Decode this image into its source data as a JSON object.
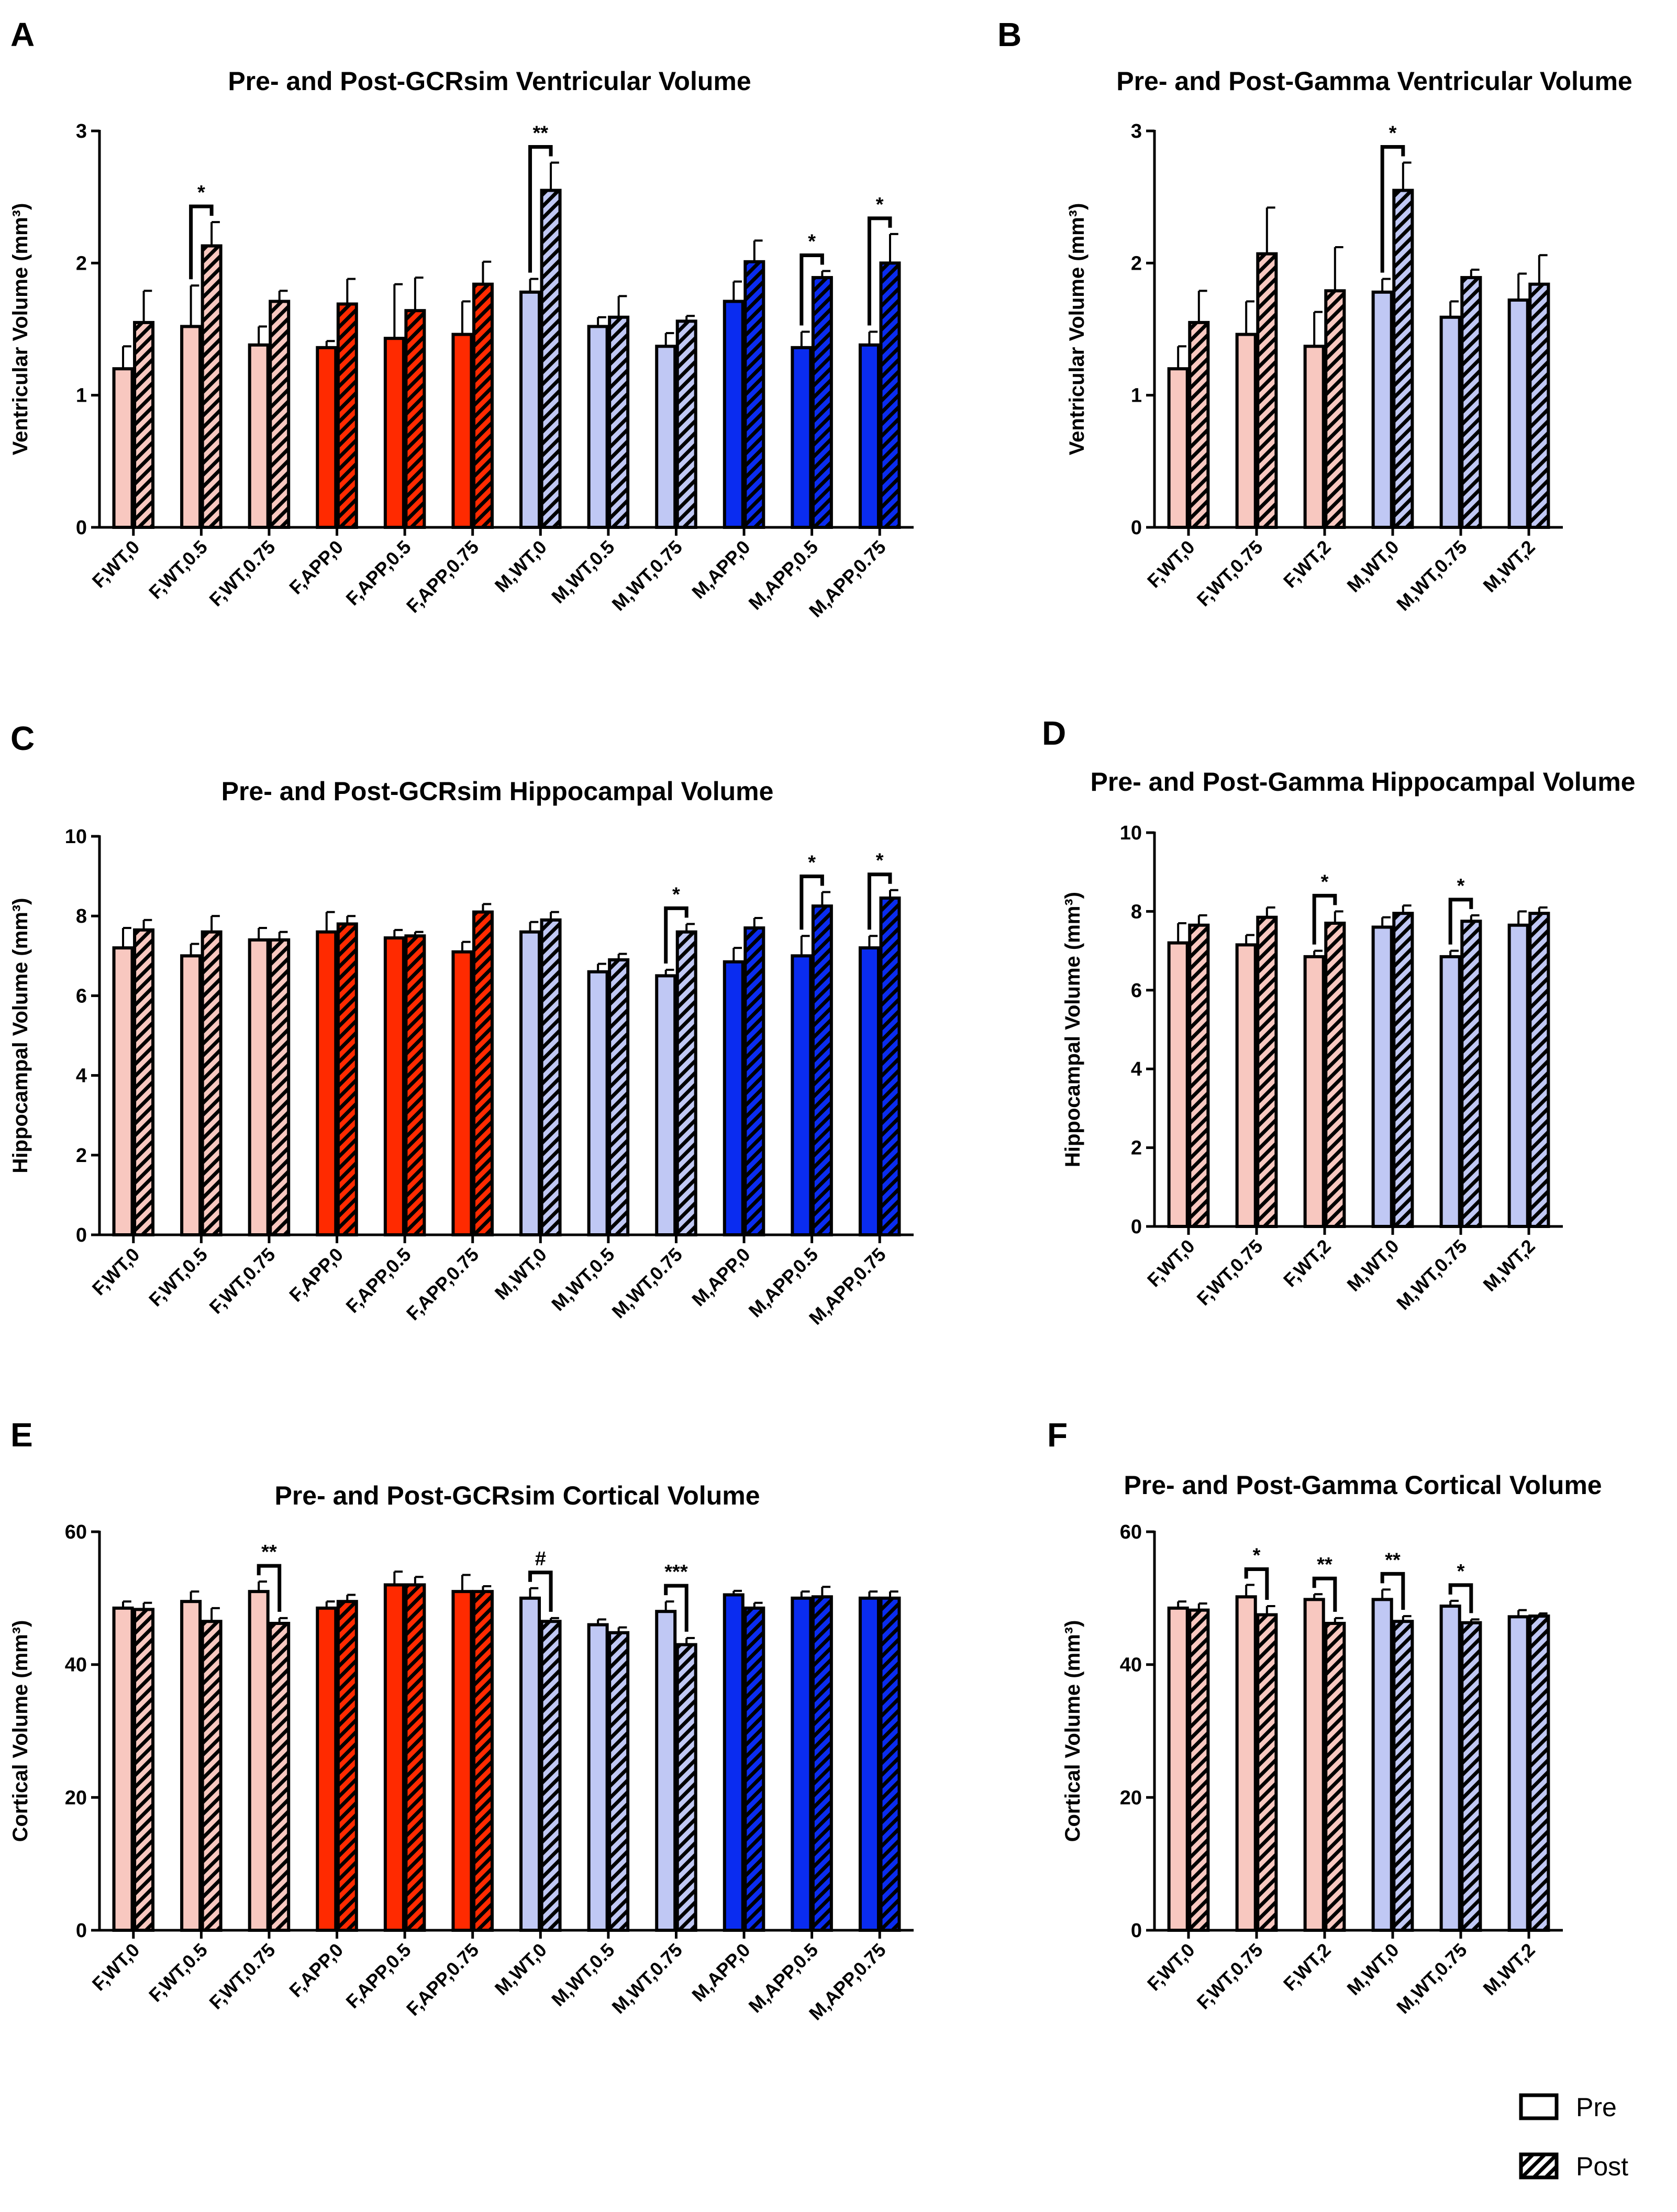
{
  "legend": {
    "pre_label": "Pre",
    "post_label": "Post"
  },
  "colors": {
    "F,WT": "#f8c8c0",
    "F,APP": "#ff2a00",
    "M,WT": "#c0c8f4",
    "M,APP": "#0a2cf0",
    "hatch": "#000000"
  },
  "chart_data": [
    {
      "panel": "A",
      "type": "bar",
      "title": "Pre- and Post-GCRsim Ventricular Volume",
      "ylabel": "Ventricular Volume (mm³)",
      "ylim": [
        0,
        3
      ],
      "yticks": [
        0,
        1,
        2,
        3
      ],
      "categories": [
        "F,WT,0",
        "F,WT,0.5",
        "F,WT,0.75",
        "F,APP,0",
        "F,APP,0.5",
        "F,APP,0.75",
        "M,WT,0",
        "M,WT,0.5",
        "M,WT,0.75",
        "M,APP,0",
        "M,APP,0.5",
        "M,APP,0.75"
      ],
      "groups": [
        "F,WT",
        "F,WT",
        "F,WT",
        "F,APP",
        "F,APP",
        "F,APP",
        "M,WT",
        "M,WT",
        "M,WT",
        "M,APP",
        "M,APP",
        "M,APP"
      ],
      "series": [
        {
          "name": "Pre",
          "values": [
            1.2,
            1.52,
            1.38,
            1.36,
            1.43,
            1.46,
            1.78,
            1.52,
            1.37,
            1.71,
            1.36,
            1.38
          ],
          "errors": [
            0.17,
            0.31,
            0.14,
            0.05,
            0.41,
            0.25,
            0.1,
            0.07,
            0.1,
            0.15,
            0.12,
            0.1
          ]
        },
        {
          "name": "Post",
          "values": [
            1.55,
            2.13,
            1.71,
            1.69,
            1.64,
            1.84,
            2.55,
            1.59,
            1.56,
            2.01,
            1.89,
            2.0
          ],
          "errors": [
            0.24,
            0.18,
            0.08,
            0.19,
            0.25,
            0.17,
            0.21,
            0.16,
            0.04,
            0.16,
            0.05,
            0.22
          ]
        }
      ],
      "significance": [
        {
          "index": 1,
          "label": "*"
        },
        {
          "index": 6,
          "label": "**"
        },
        {
          "index": 10,
          "label": "*"
        },
        {
          "index": 11,
          "label": "*"
        }
      ]
    },
    {
      "panel": "B",
      "type": "bar",
      "title": "Pre- and Post-Gamma Ventricular Volume",
      "ylabel": "Ventricular Volume (mm³)",
      "ylim": [
        0,
        3
      ],
      "yticks": [
        0,
        1,
        2,
        3
      ],
      "categories": [
        "F,WT,0",
        "F,WT,0.75",
        "F,WT,2",
        "M,WT,0",
        "M,WT,0.75",
        "M,WT,2"
      ],
      "groups": [
        "F,WT",
        "F,WT",
        "F,WT",
        "M,WT",
        "M,WT",
        "M,WT"
      ],
      "series": [
        {
          "name": "Pre",
          "values": [
            1.2,
            1.46,
            1.37,
            1.78,
            1.59,
            1.72
          ],
          "errors": [
            0.17,
            0.25,
            0.26,
            0.1,
            0.12,
            0.2
          ]
        },
        {
          "name": "Post",
          "values": [
            1.55,
            2.07,
            1.79,
            2.55,
            1.89,
            1.84
          ],
          "errors": [
            0.24,
            0.35,
            0.33,
            0.21,
            0.06,
            0.22
          ]
        }
      ],
      "significance": [
        {
          "index": 3,
          "label": "*"
        }
      ]
    },
    {
      "panel": "C",
      "type": "bar",
      "title": "Pre- and Post-GCRsim Hippocampal Volume",
      "ylabel": "Hippocampal Volume (mm³)",
      "ylim": [
        0,
        10
      ],
      "yticks": [
        0,
        2,
        4,
        6,
        8,
        10
      ],
      "categories": [
        "F,WT,0",
        "F,WT,0.5",
        "F,WT,0.75",
        "F,APP,0",
        "F,APP,0.5",
        "F,APP,0.75",
        "M,WT,0",
        "M,WT,0.5",
        "M,WT,0.75",
        "M,APP,0",
        "M,APP,0.5",
        "M,APP,0.75"
      ],
      "groups": [
        "F,WT",
        "F,WT",
        "F,WT",
        "F,APP",
        "F,APP",
        "F,APP",
        "M,WT",
        "M,WT",
        "M,WT",
        "M,APP",
        "M,APP",
        "M,APP"
      ],
      "series": [
        {
          "name": "Pre",
          "values": [
            7.2,
            7.0,
            7.4,
            7.6,
            7.45,
            7.1,
            7.6,
            6.6,
            6.5,
            6.85,
            7.0,
            7.2
          ],
          "errors": [
            0.5,
            0.3,
            0.3,
            0.5,
            0.2,
            0.25,
            0.25,
            0.2,
            0.15,
            0.35,
            0.5,
            0.3
          ]
        },
        {
          "name": "Post",
          "values": [
            7.65,
            7.6,
            7.4,
            7.8,
            7.5,
            8.1,
            7.9,
            6.9,
            7.6,
            7.7,
            8.25,
            8.45
          ],
          "errors": [
            0.25,
            0.4,
            0.2,
            0.2,
            0.1,
            0.2,
            0.2,
            0.15,
            0.2,
            0.25,
            0.35,
            0.2
          ]
        }
      ],
      "significance": [
        {
          "index": 8,
          "label": "*"
        },
        {
          "index": 10,
          "label": "*"
        },
        {
          "index": 11,
          "label": "*"
        }
      ]
    },
    {
      "panel": "D",
      "type": "bar",
      "title": "Pre- and Post-Gamma Hippocampal Volume",
      "ylabel": "Hippocampal Volume (mm³)",
      "ylim": [
        0,
        10
      ],
      "yticks": [
        0,
        2,
        4,
        6,
        8,
        10
      ],
      "categories": [
        "F,WT,0",
        "F,WT,0.75",
        "F,WT,2",
        "M,WT,0",
        "M,WT,0.75",
        "M,WT,2"
      ],
      "groups": [
        "F,WT",
        "F,WT",
        "F,WT",
        "M,WT",
        "M,WT",
        "M,WT"
      ],
      "series": [
        {
          "name": "Pre",
          "values": [
            7.2,
            7.15,
            6.85,
            7.6,
            6.85,
            7.65
          ],
          "errors": [
            0.5,
            0.25,
            0.15,
            0.25,
            0.15,
            0.35
          ]
        },
        {
          "name": "Post",
          "values": [
            7.65,
            7.85,
            7.7,
            7.95,
            7.75,
            7.95
          ],
          "errors": [
            0.25,
            0.25,
            0.3,
            0.2,
            0.15,
            0.15
          ]
        }
      ],
      "significance": [
        {
          "index": 2,
          "label": "*"
        },
        {
          "index": 4,
          "label": "*"
        }
      ]
    },
    {
      "panel": "E",
      "type": "bar",
      "title": "Pre- and Post-GCRsim Cortical Volume",
      "ylabel": "Cortical Volume (mm³)",
      "ylim": [
        0,
        60
      ],
      "yticks": [
        0,
        20,
        40,
        60
      ],
      "categories": [
        "F,WT,0",
        "F,WT,0.5",
        "F,WT,0.75",
        "F,APP,0",
        "F,APP,0.5",
        "F,APP,0.75",
        "M,WT,0",
        "M,WT,0.5",
        "M,WT,0.75",
        "M,APP,0",
        "M,APP,0.5",
        "M,APP,0.75"
      ],
      "groups": [
        "F,WT",
        "F,WT",
        "F,WT",
        "F,APP",
        "F,APP",
        "F,APP",
        "M,WT",
        "M,WT",
        "M,WT",
        "M,APP",
        "M,APP",
        "M,APP"
      ],
      "series": [
        {
          "name": "Pre",
          "values": [
            48.5,
            49.5,
            51,
            48.5,
            52,
            51,
            50,
            46,
            48,
            50.5,
            50,
            50
          ],
          "errors": [
            1,
            1.5,
            1.5,
            1,
            2,
            2.5,
            1.5,
            0.8,
            1.5,
            0.6,
            1,
            1
          ]
        },
        {
          "name": "Post",
          "values": [
            48.3,
            46.5,
            46.2,
            49.5,
            52,
            51,
            46.5,
            44.8,
            43,
            48.5,
            50.2,
            50
          ],
          "errors": [
            1,
            2,
            0.8,
            1,
            1.2,
            0.8,
            0.5,
            0.8,
            1,
            0.8,
            1.5,
            1
          ]
        }
      ],
      "significance": [
        {
          "index": 2,
          "label": "**"
        },
        {
          "index": 6,
          "label": "#"
        },
        {
          "index": 8,
          "label": "***"
        }
      ]
    },
    {
      "panel": "F",
      "type": "bar",
      "title": "Pre- and Post-Gamma Cortical Volume",
      "ylabel": "Cortical Volume (mm³)",
      "ylim": [
        0,
        60
      ],
      "yticks": [
        0,
        20,
        40,
        60
      ],
      "categories": [
        "F,WT,0",
        "F,WT,0.75",
        "F,WT,2",
        "M,WT,0",
        "M,WT,0.75",
        "M,WT,2"
      ],
      "groups": [
        "F,WT",
        "F,WT",
        "F,WT",
        "M,WT",
        "M,WT",
        "M,WT"
      ],
      "series": [
        {
          "name": "Pre",
          "values": [
            48.5,
            50.2,
            49.8,
            49.8,
            48.8,
            47.2
          ],
          "errors": [
            1,
            1.8,
            0.8,
            1.5,
            0.8,
            1
          ]
        },
        {
          "name": "Post",
          "values": [
            48.2,
            47.5,
            46.2,
            46.5,
            46.3,
            47.3
          ],
          "errors": [
            1,
            1.3,
            0.8,
            0.8,
            0.5,
            0.4
          ]
        }
      ],
      "significance": [
        {
          "index": 1,
          "label": "*"
        },
        {
          "index": 2,
          "label": "**"
        },
        {
          "index": 3,
          "label": "**"
        },
        {
          "index": 4,
          "label": "*"
        }
      ]
    }
  ]
}
